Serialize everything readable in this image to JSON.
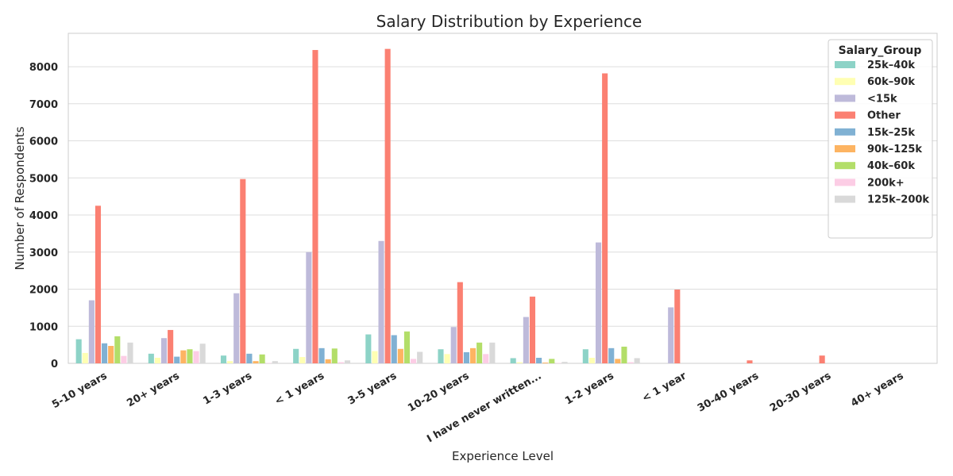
{
  "chart_data": {
    "type": "bar",
    "title": "Salary Distribution by Experience",
    "xlabel": "Experience Level",
    "ylabel": "Number of Respondents",
    "ylim": [
      0,
      8900
    ],
    "yticks": [
      0,
      1000,
      2000,
      3000,
      4000,
      5000,
      6000,
      7000,
      8000
    ],
    "grid": true,
    "legend": {
      "title": "Salary_Group",
      "placement": "top-right"
    },
    "categories": [
      "5-10 years",
      "20+ years",
      "1-3 years",
      "< 1 years",
      "3-5 years",
      "10-20 years",
      "I have never written...",
      "1-2 years",
      "< 1 year",
      "30-40 years",
      "20-30 years",
      "40+ years"
    ],
    "series": [
      {
        "name": "25k–40k",
        "color": "#8dd3c7",
        "values": [
          650,
          260,
          210,
          390,
          780,
          380,
          140,
          380,
          0,
          0,
          0,
          0
        ]
      },
      {
        "name": "60k–90k",
        "color": "#ffffb3",
        "values": [
          280,
          150,
          60,
          170,
          330,
          250,
          30,
          150,
          0,
          0,
          0,
          0
        ]
      },
      {
        "name": "<15k",
        "color": "#bebada",
        "values": [
          1700,
          680,
          1890,
          3000,
          3300,
          980,
          1250,
          3260,
          1510,
          0,
          0,
          0
        ]
      },
      {
        "name": "Other",
        "color": "#fb8072",
        "values": [
          4250,
          900,
          4970,
          8450,
          8480,
          2190,
          1800,
          7820,
          1990,
          80,
          210,
          0
        ]
      },
      {
        "name": "15k–25k",
        "color": "#80b1d3",
        "values": [
          540,
          180,
          260,
          410,
          760,
          300,
          150,
          410,
          0,
          0,
          0,
          0
        ]
      },
      {
        "name": "90k–125k",
        "color": "#fdb462",
        "values": [
          470,
          350,
          60,
          110,
          390,
          410,
          20,
          120,
          0,
          0,
          0,
          0
        ]
      },
      {
        "name": "40k–60k",
        "color": "#b3de69",
        "values": [
          730,
          380,
          240,
          400,
          860,
          560,
          120,
          450,
          0,
          0,
          0,
          0
        ]
      },
      {
        "name": "200k+",
        "color": "#fccde5",
        "values": [
          200,
          330,
          10,
          30,
          120,
          250,
          10,
          30,
          0,
          0,
          0,
          0
        ]
      },
      {
        "name": "125k–200k",
        "color": "#d9d9d9",
        "values": [
          560,
          530,
          60,
          80,
          310,
          560,
          40,
          140,
          0,
          0,
          0,
          0
        ]
      }
    ]
  }
}
